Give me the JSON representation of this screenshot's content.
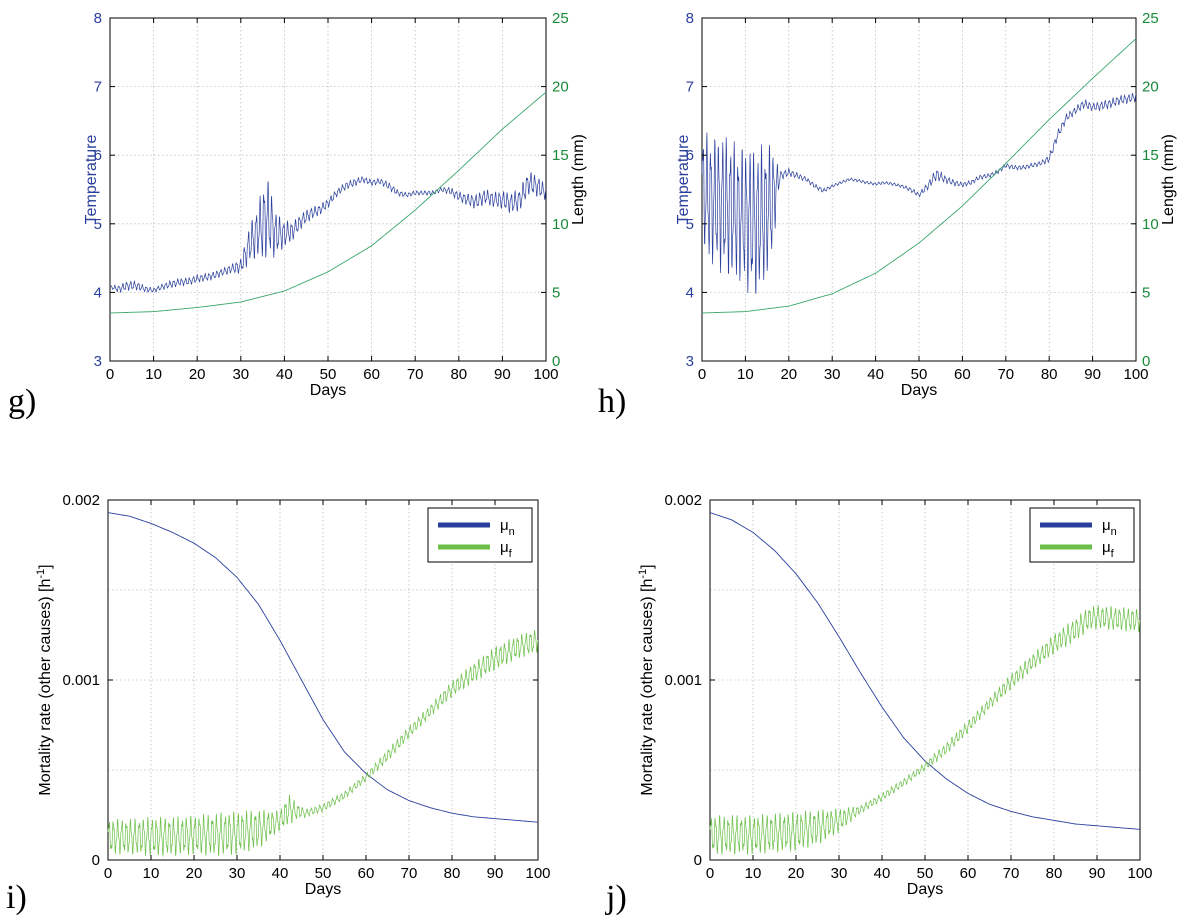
{
  "chart_data": [
    {
      "panel_label": "g)",
      "type": "line",
      "xlabel": "Days",
      "ylabel_left": "Temperature",
      "ylabel_right": "Length (mm)",
      "xlim": [
        0,
        100
      ],
      "ylim_left": [
        3,
        8
      ],
      "ylim_right": [
        0,
        25
      ],
      "xticks": [
        0,
        10,
        20,
        30,
        40,
        50,
        60,
        70,
        80,
        90,
        100
      ],
      "yticks_left": [
        3,
        4,
        5,
        6,
        7,
        8
      ],
      "yticks_right": [
        0,
        5,
        10,
        15,
        20,
        25
      ],
      "grid": true,
      "colors": {
        "left_axis": "#2a3f9c",
        "right_axis": "#1a8a3a",
        "temperature_line": "#2a3f9c",
        "length_line": "#3aa66a"
      },
      "series": [
        {
          "axis": "left",
          "x": [
            0,
            2,
            4,
            6,
            8,
            10,
            12,
            14,
            16,
            18,
            20,
            22,
            24,
            26,
            28,
            30,
            32,
            34,
            35,
            36,
            37,
            38,
            40,
            42,
            44,
            46,
            48,
            50,
            52,
            54,
            56,
            58,
            60,
            62,
            64,
            66,
            68,
            70,
            72,
            74,
            76,
            78,
            80,
            82,
            84,
            86,
            88,
            90,
            92,
            94,
            96,
            98,
            100
          ],
          "values": [
            4.08,
            4.05,
            4.1,
            4.1,
            4.05,
            4.03,
            4.08,
            4.12,
            4.15,
            4.16,
            4.2,
            4.22,
            4.25,
            4.3,
            4.35,
            4.38,
            4.7,
            4.9,
            5.0,
            5.1,
            5.0,
            4.85,
            4.85,
            4.9,
            5.05,
            5.15,
            5.2,
            5.3,
            5.45,
            5.55,
            5.6,
            5.65,
            5.6,
            5.62,
            5.55,
            5.45,
            5.42,
            5.45,
            5.45,
            5.45,
            5.5,
            5.48,
            5.4,
            5.35,
            5.32,
            5.4,
            5.35,
            5.35,
            5.3,
            5.35,
            5.6,
            5.55,
            5.45
          ],
          "oscillation": [
            0.02,
            0.05,
            0.06,
            0.06,
            0.04,
            0.03,
            0.04,
            0.05,
            0.05,
            0.05,
            0.05,
            0.05,
            0.05,
            0.05,
            0.06,
            0.1,
            0.25,
            0.35,
            0.5,
            0.55,
            0.45,
            0.3,
            0.18,
            0.12,
            0.1,
            0.08,
            0.07,
            0.06,
            0.05,
            0.05,
            0.05,
            0.04,
            0.04,
            0.04,
            0.05,
            0.04,
            0.03,
            0.03,
            0.03,
            0.03,
            0.03,
            0.05,
            0.06,
            0.08,
            0.1,
            0.1,
            0.1,
            0.12,
            0.14,
            0.15,
            0.16,
            0.14,
            0.1
          ]
        },
        {
          "axis": "right",
          "x": [
            0,
            10,
            20,
            30,
            40,
            50,
            60,
            70,
            80,
            90,
            100
          ],
          "values": [
            3.5,
            3.6,
            3.9,
            4.3,
            5.1,
            6.5,
            8.4,
            11.0,
            13.9,
            16.9,
            19.6
          ],
          "oscillation": [
            0,
            0,
            0,
            0,
            0,
            0,
            0,
            0,
            0,
            0,
            0
          ]
        }
      ]
    },
    {
      "panel_label": "h)",
      "type": "line",
      "xlabel": "Days",
      "ylabel_left": "Temperature",
      "ylabel_right": "Length (mm)",
      "xlim": [
        0,
        100
      ],
      "ylim_left": [
        3,
        8
      ],
      "ylim_right": [
        0,
        25
      ],
      "xticks": [
        0,
        10,
        20,
        30,
        40,
        50,
        60,
        70,
        80,
        90,
        100
      ],
      "yticks_left": [
        3,
        4,
        5,
        6,
        7,
        8
      ],
      "yticks_right": [
        0,
        5,
        10,
        15,
        20,
        25
      ],
      "grid": true,
      "colors": {
        "left_axis": "#2a3f9c",
        "right_axis": "#1a8a3a",
        "temperature_line": "#2a3f9c",
        "length_line": "#3aa66a"
      },
      "series": [
        {
          "axis": "left",
          "x": [
            0,
            2,
            4,
            6,
            8,
            10,
            12,
            14,
            16,
            18,
            20,
            22,
            24,
            26,
            28,
            30,
            32,
            34,
            36,
            38,
            40,
            42,
            44,
            46,
            48,
            50,
            52,
            54,
            56,
            58,
            60,
            62,
            64,
            66,
            68,
            70,
            72,
            74,
            76,
            78,
            80,
            82,
            84,
            86,
            88,
            90,
            92,
            94,
            96,
            98,
            100
          ],
          "values": [
            5.5,
            5.35,
            5.3,
            5.25,
            5.15,
            5.1,
            5.0,
            5.1,
            5.3,
            5.7,
            5.75,
            5.7,
            5.65,
            5.55,
            5.48,
            5.55,
            5.6,
            5.65,
            5.63,
            5.6,
            5.58,
            5.6,
            5.58,
            5.55,
            5.5,
            5.42,
            5.55,
            5.72,
            5.65,
            5.6,
            5.57,
            5.6,
            5.68,
            5.7,
            5.75,
            5.85,
            5.82,
            5.82,
            5.85,
            5.88,
            5.95,
            6.3,
            6.55,
            6.65,
            6.75,
            6.7,
            6.72,
            6.75,
            6.8,
            6.82,
            6.85
          ],
          "oscillation": [
            0.8,
            0.85,
            0.9,
            0.95,
            0.9,
            0.95,
            1.0,
            0.95,
            0.8,
            0.06,
            0.05,
            0.04,
            0.03,
            0.03,
            0.03,
            0.02,
            0.02,
            0.02,
            0.02,
            0.02,
            0.02,
            0.02,
            0.02,
            0.02,
            0.03,
            0.03,
            0.05,
            0.08,
            0.05,
            0.04,
            0.03,
            0.03,
            0.03,
            0.03,
            0.03,
            0.03,
            0.03,
            0.03,
            0.03,
            0.03,
            0.05,
            0.06,
            0.05,
            0.05,
            0.06,
            0.05,
            0.06,
            0.06,
            0.06,
            0.06,
            0.06
          ]
        },
        {
          "axis": "right",
          "x": [
            0,
            10,
            20,
            30,
            40,
            50,
            60,
            70,
            80,
            90,
            100
          ],
          "values": [
            3.5,
            3.6,
            4.0,
            4.9,
            6.4,
            8.6,
            11.3,
            14.4,
            17.6,
            20.6,
            23.5
          ],
          "oscillation": [
            0,
            0,
            0,
            0,
            0,
            0,
            0,
            0,
            0,
            0,
            0
          ]
        }
      ]
    },
    {
      "panel_label": "i)",
      "type": "line",
      "xlabel": "Days",
      "ylabel_left": "Mortality rate (other causes) [h",
      "ylabel_left_sup": "-1",
      "ylabel_left_end": "]",
      "xlim": [
        0,
        100
      ],
      "ylim_left": [
        0,
        0.002
      ],
      "xticks": [
        0,
        10,
        20,
        30,
        40,
        50,
        60,
        70,
        80,
        90,
        100
      ],
      "yticks_left": [
        0,
        0.001,
        0.002
      ],
      "ytick_labels_left": [
        "0",
        "0.001",
        "0.002"
      ],
      "grid": true,
      "legend": {
        "position": "top-right",
        "entries": [
          {
            "symbol": "μ",
            "subscript": "n",
            "color": "#2a3f9c"
          },
          {
            "symbol": "μ",
            "subscript": "f",
            "color": "#6cc04a"
          }
        ]
      },
      "series": [
        {
          "name": "μn",
          "x": [
            0,
            5,
            10,
            15,
            20,
            25,
            30,
            35,
            40,
            45,
            50,
            55,
            60,
            65,
            70,
            75,
            80,
            85,
            90,
            95,
            100
          ],
          "values": [
            0.00193,
            0.00191,
            0.00187,
            0.00182,
            0.00176,
            0.00168,
            0.00157,
            0.00142,
            0.00122,
            0.001,
            0.00078,
            0.0006,
            0.00048,
            0.00039,
            0.00033,
            0.00029,
            0.00026,
            0.00024,
            0.00023,
            0.00022,
            0.00021
          ],
          "oscillation": [
            0,
            0,
            0,
            0,
            0,
            0,
            0,
            0,
            0,
            0,
            0,
            0,
            0,
            0,
            0,
            0,
            0,
            0,
            0,
            0,
            0
          ]
        },
        {
          "name": "μf",
          "x": [
            0,
            5,
            10,
            15,
            20,
            25,
            30,
            35,
            40,
            42,
            44,
            46,
            50,
            55,
            60,
            65,
            70,
            75,
            80,
            85,
            90,
            95,
            100
          ],
          "values": [
            0.00013,
            0.00013,
            0.00013,
            0.00013,
            0.00014,
            0.00014,
            0.00015,
            0.00017,
            0.00022,
            0.00028,
            0.00027,
            0.00026,
            0.00029,
            0.00036,
            0.00046,
            0.00058,
            0.00071,
            0.00083,
            0.00095,
            0.00104,
            0.00112,
            0.00118,
            0.00122
          ],
          "oscillation": [
            9e-05,
            9e-05,
            0.0001,
            0.0001,
            0.0001,
            0.00011,
            0.00011,
            0.0001,
            5e-05,
            8e-05,
            4e-05,
            2e-05,
            2e-05,
            2e-05,
            2e-05,
            3e-05,
            3e-05,
            3e-05,
            4e-05,
            5e-05,
            6e-05,
            6e-05,
            6e-05
          ]
        }
      ]
    },
    {
      "panel_label": "j)",
      "type": "line",
      "xlabel": "Days",
      "ylabel_left": "Mortality rate (other causes) [h",
      "ylabel_left_sup": "-1",
      "ylabel_left_end": "]",
      "xlim": [
        0,
        100
      ],
      "ylim_left": [
        0,
        0.002
      ],
      "xticks": [
        0,
        10,
        20,
        30,
        40,
        50,
        60,
        70,
        80,
        90,
        100
      ],
      "yticks_left": [
        0,
        0.001,
        0.002
      ],
      "ytick_labels_left": [
        "0",
        "0.001",
        "0.002"
      ],
      "grid": true,
      "legend": {
        "position": "top-right",
        "entries": [
          {
            "symbol": "μ",
            "subscript": "n",
            "color": "#2a3f9c"
          },
          {
            "symbol": "μ",
            "subscript": "f",
            "color": "#6cc04a"
          }
        ]
      },
      "series": [
        {
          "name": "μn",
          "x": [
            0,
            5,
            10,
            15,
            20,
            25,
            30,
            35,
            40,
            45,
            50,
            55,
            60,
            65,
            70,
            75,
            80,
            85,
            90,
            95,
            100
          ],
          "values": [
            0.00193,
            0.00189,
            0.00182,
            0.00172,
            0.00159,
            0.00143,
            0.00124,
            0.00104,
            0.00085,
            0.00068,
            0.00055,
            0.00045,
            0.00037,
            0.00031,
            0.00027,
            0.00024,
            0.00022,
            0.0002,
            0.00019,
            0.00018,
            0.00017
          ],
          "oscillation": [
            0,
            0,
            0,
            0,
            0,
            0,
            0,
            0,
            0,
            0,
            0,
            0,
            0,
            0,
            0,
            0,
            0,
            0,
            0,
            0,
            0
          ]
        },
        {
          "name": "μf",
          "x": [
            0,
            5,
            10,
            15,
            20,
            25,
            30,
            35,
            40,
            45,
            50,
            55,
            60,
            65,
            70,
            75,
            80,
            85,
            88,
            90,
            95,
            100
          ],
          "values": [
            0.00014,
            0.00014,
            0.00014,
            0.00015,
            0.00016,
            0.00018,
            0.00022,
            0.00028,
            0.00035,
            0.00043,
            0.00052,
            0.00062,
            0.00074,
            0.00087,
            0.00099,
            0.0011,
            0.0012,
            0.00128,
            0.00134,
            0.00135,
            0.00134,
            0.00133
          ],
          "oscillation": [
            0.0001,
            0.0001,
            0.0001,
            0.0001,
            0.0001,
            9e-05,
            6e-05,
            2e-05,
            2e-05,
            2e-05,
            2e-05,
            3e-05,
            3e-05,
            3e-05,
            4e-05,
            4e-05,
            5e-05,
            6e-05,
            6e-05,
            6e-05,
            6e-05,
            6e-05
          ]
        }
      ]
    }
  ]
}
